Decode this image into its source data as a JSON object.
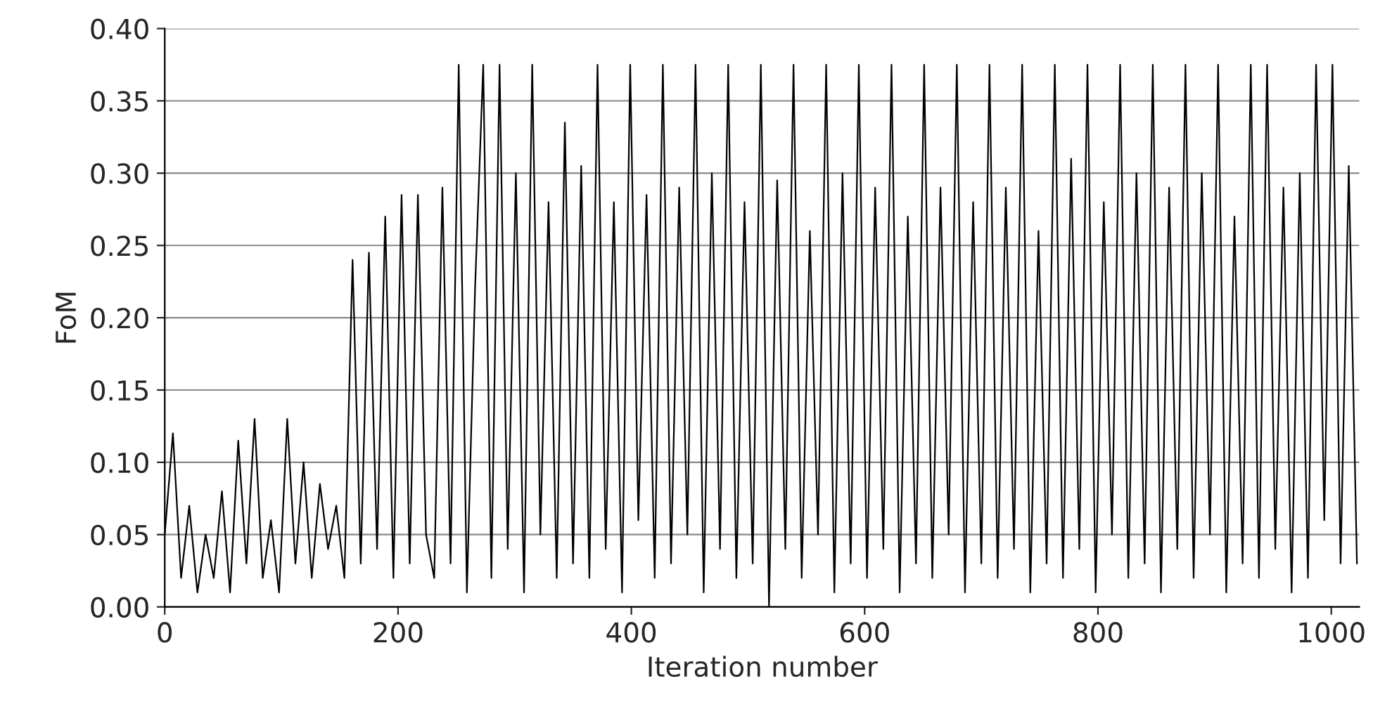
{
  "chart_data": {
    "type": "line",
    "xlabel": "Iteration number",
    "ylabel": "FoM",
    "x": [
      0,
      7,
      14,
      21,
      28,
      35,
      42,
      49,
      56,
      63,
      70,
      77,
      84,
      91,
      98,
      105,
      112,
      119,
      126,
      133,
      140,
      147,
      154,
      161,
      168,
      175,
      182,
      189,
      196,
      203,
      210,
      217,
      224,
      231,
      238,
      245,
      252,
      259,
      266,
      273,
      280,
      287,
      294,
      301,
      308,
      315,
      322,
      329,
      336,
      343,
      350,
      357,
      364,
      371,
      378,
      385,
      392,
      399,
      406,
      413,
      420,
      427,
      434,
      441,
      448,
      455,
      462,
      469,
      476,
      483,
      490,
      497,
      504,
      511,
      518,
      525,
      532,
      539,
      546,
      553,
      560,
      567,
      574,
      581,
      588,
      595,
      602,
      609,
      616,
      623,
      630,
      637,
      644,
      651,
      658,
      665,
      672,
      679,
      686,
      693,
      700,
      707,
      714,
      721,
      728,
      735,
      742,
      749,
      756,
      763,
      770,
      777,
      784,
      791,
      798,
      805,
      812,
      819,
      826,
      833,
      840,
      847,
      854,
      861,
      868,
      875,
      882,
      889,
      896,
      903,
      910,
      917,
      924,
      931,
      938,
      945,
      952,
      959,
      966,
      973,
      980,
      987,
      994,
      1001,
      1008,
      1015,
      1022
    ],
    "series": [
      {
        "color": "#000000",
        "values": [
          0.05,
          0.12,
          0.02,
          0.07,
          0.01,
          0.05,
          0.02,
          0.08,
          0.01,
          0.115,
          0.03,
          0.13,
          0.02,
          0.06,
          0.01,
          0.13,
          0.03,
          0.1,
          0.02,
          0.085,
          0.04,
          0.07,
          0.02,
          0.24,
          0.03,
          0.245,
          0.04,
          0.27,
          0.02,
          0.285,
          0.03,
          0.285,
          0.05,
          0.02,
          0.29,
          0.03,
          0.375,
          0.01,
          0.22,
          0.375,
          0.02,
          0.375,
          0.04,
          0.3,
          0.01,
          0.375,
          0.05,
          0.28,
          0.02,
          0.335,
          0.03,
          0.305,
          0.02,
          0.375,
          0.04,
          0.28,
          0.01,
          0.375,
          0.06,
          0.285,
          0.02,
          0.375,
          0.03,
          0.29,
          0.05,
          0.375,
          0.01,
          0.3,
          0.04,
          0.375,
          0.02,
          0.28,
          0.03,
          0.375,
          0.0,
          0.295,
          0.04,
          0.375,
          0.02,
          0.26,
          0.05,
          0.375,
          0.01,
          0.3,
          0.03,
          0.375,
          0.02,
          0.29,
          0.04,
          0.375,
          0.01,
          0.27,
          0.03,
          0.375,
          0.02,
          0.29,
          0.05,
          0.375,
          0.01,
          0.28,
          0.03,
          0.375,
          0.02,
          0.29,
          0.04,
          0.375,
          0.01,
          0.26,
          0.03,
          0.375,
          0.02,
          0.31,
          0.04,
          0.375,
          0.01,
          0.28,
          0.05,
          0.375,
          0.02,
          0.3,
          0.03,
          0.375,
          0.01,
          0.29,
          0.04,
          0.375,
          0.02,
          0.3,
          0.05,
          0.375,
          0.01,
          0.27,
          0.03,
          0.375,
          0.02,
          0.375,
          0.04,
          0.29,
          0.01,
          0.3,
          0.02,
          0.375,
          0.06,
          0.375,
          0.03,
          0.305,
          0.03
        ]
      }
    ],
    "xlim": [
      0,
      1024
    ],
    "xticks": [
      0,
      200,
      400,
      600,
      800,
      1000
    ],
    "ylim": [
      0,
      0.4
    ],
    "yticks": [
      {
        "value": 0,
        "label": "0.00"
      },
      {
        "value": 0.05,
        "label": "0.05"
      },
      {
        "value": 0.1,
        "label": "0.10"
      },
      {
        "value": 0.15,
        "label": "0.15"
      },
      {
        "value": 0.2,
        "label": "0.20"
      },
      {
        "value": 0.25,
        "label": "0.25"
      },
      {
        "value": 0.3,
        "label": "0.30"
      },
      {
        "value": 0.35,
        "label": "0.35"
      },
      {
        "value": 0.4,
        "label": "0.40"
      }
    ],
    "grid": "y",
    "marker": "none",
    "line_style": "solid"
  }
}
